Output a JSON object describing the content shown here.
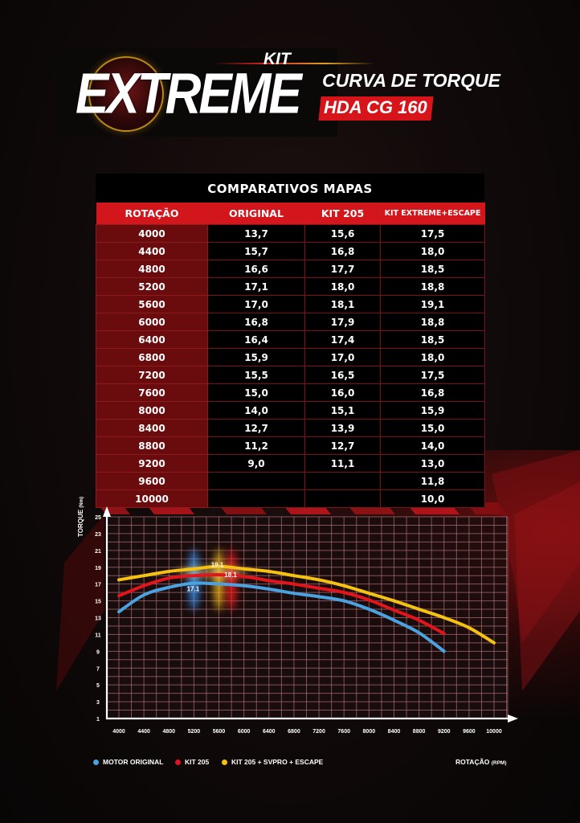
{
  "header": {
    "logo_kit": "KIT",
    "logo_extreme": "EXTREME",
    "title": "CURVA DE TORQUE",
    "subtitle": "HDA CG 160"
  },
  "table": {
    "title": "COMPARATIVOS MAPAS",
    "columns": [
      "ROTAÇÃO",
      "ORIGINAL",
      "KIT 205",
      "KIT EXTREME+ESCAPE"
    ],
    "rows": [
      [
        "4000",
        "13,7",
        "15,6",
        "17,5"
      ],
      [
        "4400",
        "15,7",
        "16,8",
        "18,0"
      ],
      [
        "4800",
        "16,6",
        "17,7",
        "18,5"
      ],
      [
        "5200",
        "17,1",
        "18,0",
        "18,8"
      ],
      [
        "5600",
        "17,0",
        "18,1",
        "19,1"
      ],
      [
        "6000",
        "16,8",
        "17,9",
        "18,8"
      ],
      [
        "6400",
        "16,4",
        "17,4",
        "18,5"
      ],
      [
        "6800",
        "15,9",
        "17,0",
        "18,0"
      ],
      [
        "7200",
        "15,5",
        "16,5",
        "17,5"
      ],
      [
        "7600",
        "15,0",
        "16,0",
        "16,8"
      ],
      [
        "8000",
        "14,0",
        "15,1",
        "15,9"
      ],
      [
        "8400",
        "12,7",
        "13,9",
        "15,0"
      ],
      [
        "8800",
        "11,2",
        "12,7",
        "14,0"
      ],
      [
        "9200",
        "9,0",
        "11,1",
        "13,0"
      ],
      [
        "9600",
        "",
        "",
        "11,8"
      ],
      [
        "10000",
        "",
        "",
        "10,0"
      ]
    ]
  },
  "chart": {
    "ylabel_main": "TORQUE",
    "ylabel_unit": "(Nm)",
    "xlabel_main": "ROTAÇÃO",
    "xlabel_unit": "(RPM)",
    "legend": [
      {
        "label": "MOTOR ORIGINAL",
        "color": "#4aa3e0"
      },
      {
        "label": "KIT 205",
        "color": "#e3141c"
      },
      {
        "label": "KIT 205 + SVPRO + ESCAPE",
        "color": "#f5c211"
      }
    ],
    "peak_labels": [
      "17.1",
      "18.1",
      "19.1"
    ]
  },
  "chart_data": {
    "type": "line",
    "title": "CURVA DE TORQUE - HDA CG 160",
    "xlabel": "ROTAÇÃO (RPM)",
    "ylabel": "TORQUE (Nm)",
    "x": [
      4000,
      4400,
      4800,
      5200,
      5600,
      6000,
      6400,
      6800,
      7200,
      7600,
      8000,
      8400,
      8800,
      9200,
      9600,
      10000
    ],
    "xticks": [
      "4000",
      "4400",
      "4800",
      "5200",
      "5600",
      "6000",
      "6400",
      "6800",
      "7200",
      "7600",
      "8000",
      "8400",
      "8800",
      "9200",
      "9600",
      "10000"
    ],
    "yticks": [
      1,
      3,
      5,
      7,
      9,
      11,
      13,
      15,
      17,
      19,
      21,
      23,
      25
    ],
    "ylim": [
      1,
      25
    ],
    "xlim": [
      3800,
      10400
    ],
    "grid": true,
    "legend_position": "bottom",
    "series": [
      {
        "name": "MOTOR ORIGINAL",
        "color": "#4aa3e0",
        "values": [
          13.7,
          15.7,
          16.6,
          17.1,
          17.0,
          16.8,
          16.4,
          15.9,
          15.5,
          15.0,
          14.0,
          12.7,
          11.2,
          9.0,
          null,
          null
        ]
      },
      {
        "name": "KIT 205",
        "color": "#e3141c",
        "values": [
          15.6,
          16.8,
          17.7,
          18.0,
          18.1,
          17.9,
          17.4,
          17.0,
          16.5,
          16.0,
          15.1,
          13.9,
          12.7,
          11.1,
          null,
          null
        ]
      },
      {
        "name": "KIT 205 + SVPRO + ESCAPE",
        "color": "#f5c211",
        "values": [
          17.5,
          18.0,
          18.5,
          18.8,
          19.1,
          18.8,
          18.5,
          18.0,
          17.5,
          16.8,
          15.9,
          15.0,
          14.0,
          13.0,
          11.8,
          10.0
        ]
      }
    ],
    "annotations": [
      {
        "text": "17.1",
        "x": 5200,
        "series": "MOTOR ORIGINAL"
      },
      {
        "text": "18.1",
        "x": 5600,
        "series": "KIT 205"
      },
      {
        "text": "19.1",
        "x": 5600,
        "series": "KIT 205 + SVPRO + ESCAPE"
      }
    ]
  }
}
